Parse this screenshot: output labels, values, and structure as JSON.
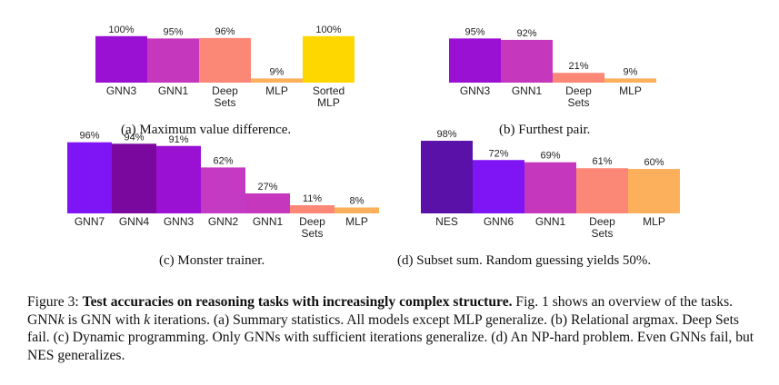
{
  "colors": {
    "GNN7": "#7f15f5",
    "GNN6": "#7f15f5",
    "GNN4": "#7a079e",
    "GNN3": "#9a11d4",
    "GNN2": "#c53ac3",
    "GNN1": "#c537bd",
    "Deep Sets": "#fb8876",
    "MLP": "#fcb05c",
    "Sorted MLP": "#ffd700",
    "NES": "#5a11a8"
  },
  "chart_data": [
    {
      "id": "a",
      "type": "bar",
      "categories": [
        "GNN3",
        "GNN1",
        "Deep Sets",
        "MLP",
        "Sorted MLP"
      ],
      "category_lines": [
        [
          "GNN3"
        ],
        [
          "GNN1"
        ],
        [
          "Deep",
          "Sets"
        ],
        [
          "MLP"
        ],
        [
          "Sorted",
          "MLP"
        ]
      ],
      "values": [
        100,
        95,
        96,
        9,
        100
      ],
      "value_labels": [
        "100%",
        "95%",
        "96%",
        "9%",
        "100%"
      ],
      "ylim": [
        0,
        100
      ],
      "caption": "(a) Maximum value difference."
    },
    {
      "id": "b",
      "type": "bar",
      "categories": [
        "GNN3",
        "GNN1",
        "Deep Sets",
        "MLP"
      ],
      "category_lines": [
        [
          "GNN3"
        ],
        [
          "GNN1"
        ],
        [
          "Deep",
          "Sets"
        ],
        [
          "MLP"
        ]
      ],
      "values": [
        95,
        92,
        21,
        9
      ],
      "value_labels": [
        "95%",
        "92%",
        "21%",
        "9%"
      ],
      "ylim": [
        0,
        100
      ],
      "caption": "(b) Furthest pair."
    },
    {
      "id": "c",
      "type": "bar",
      "categories": [
        "GNN7",
        "GNN4",
        "GNN3",
        "GNN2",
        "GNN1",
        "Deep Sets",
        "MLP"
      ],
      "category_lines": [
        [
          "GNN7"
        ],
        [
          "GNN4"
        ],
        [
          "GNN3"
        ],
        [
          "GNN2"
        ],
        [
          "GNN1"
        ],
        [
          "Deep",
          "Sets"
        ],
        [
          "MLP"
        ]
      ],
      "values": [
        96,
        94,
        91,
        62,
        27,
        11,
        8
      ],
      "value_labels": [
        "96%",
        "94%",
        "91%",
        "62%",
        "27%",
        "11%",
        "8%"
      ],
      "ylim": [
        0,
        100
      ],
      "caption": "(c) Monster trainer."
    },
    {
      "id": "d",
      "type": "bar",
      "categories": [
        "NES",
        "GNN6",
        "GNN1",
        "Deep Sets",
        "MLP"
      ],
      "category_lines": [
        [
          "NES"
        ],
        [
          "GNN6"
        ],
        [
          "GNN1"
        ],
        [
          "Deep",
          "Sets"
        ],
        [
          "MLP"
        ]
      ],
      "values": [
        98,
        72,
        69,
        61,
        60
      ],
      "value_labels": [
        "98%",
        "72%",
        "69%",
        "61%",
        "60%"
      ],
      "ylim": [
        0,
        100
      ],
      "caption": "(d) Subset sum. Random guessing yields 50%."
    }
  ],
  "figure_caption": {
    "label": "Figure 3:",
    "bold": "Test accuracies on reasoning tasks with increasingly complex structure.",
    "part1": " Fig. 1 shows an overview of the tasks. GNN",
    "k1": "k",
    "part2": " is GNN with ",
    "k2": "k",
    "part3": " iterations. (a) Summary statistics. All models except MLP generalize. (b) Relational argmax. Deep Sets fail. (c) Dynamic programming. Only GNNs with sufficient iterations generalize. (d) An NP-hard problem. Even GNNs fail, but NES generalizes."
  }
}
